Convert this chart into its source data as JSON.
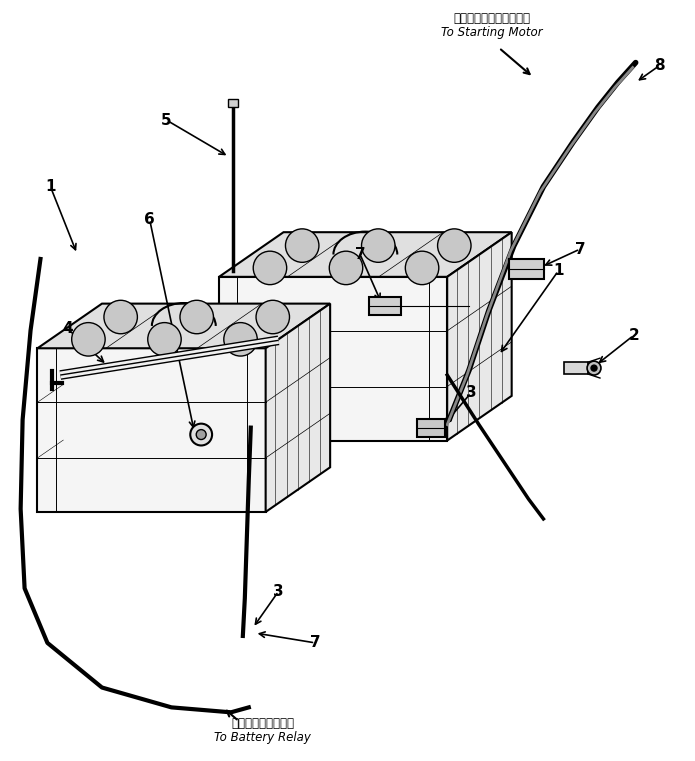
{
  "fig_width": 6.95,
  "fig_height": 7.61,
  "bg_color": "#ffffff",
  "line_color": "#000000",
  "title_jp": "スターティングモータへ",
  "title_en": "To Starting Motor",
  "bottom_jp": "バッテリーリレーへ",
  "bottom_en": "To Battery Relay"
}
